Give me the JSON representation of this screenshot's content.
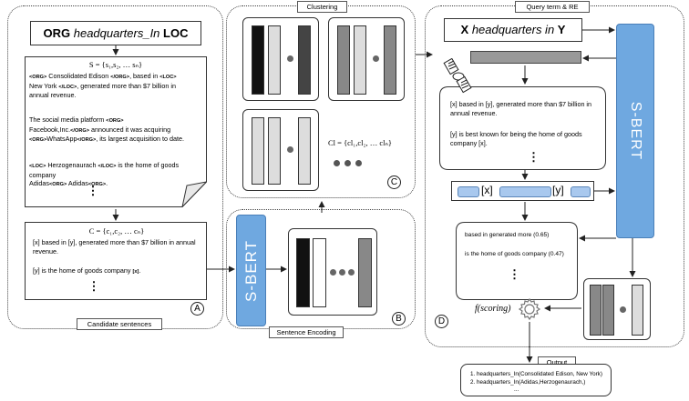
{
  "panel_a": {
    "pattern_org": "ORG",
    "pattern_rel": "headquarters_In",
    "pattern_loc": "LOC",
    "set_s": "S = {s₁,s₂, … sₙ}",
    "ex1_tag1": "<ORG>",
    "ex1_t1": " Consolidated Edison ",
    "ex1_tag2": "</ORG>",
    "ex1_t2": ", based in ",
    "ex1_tag3": "<LOC>",
    "ex1_t3": "New York ",
    "ex1_tag4": "</LOC>",
    "ex1_t4": ", generated more than $7 billion in annual revenue.",
    "ex2_t1": "The social media platform ",
    "ex2_tag1": "<ORG>",
    "ex2_t2": "Facebook,Inc.",
    "ex2_tag2": "</ORG>",
    "ex2_t3": " announced it was acquiring ",
    "ex2_tag3": "<ORG>",
    "ex2_t4": "WhatsApp",
    "ex2_tag4": "</ORG>",
    "ex2_t5": ", its largest acquisition to date.",
    "ex3_tag1": "<LOC>",
    "ex3_t1": " Herzogenaurach ",
    "ex3_tag2": "</LOC>",
    "ex3_t2": " is the home of goods company ",
    "ex3_tag3": "<ORG>",
    "ex3_t3": " Adidas",
    "ex3_tag4": "<ORG>",
    "ex3_t4": ".",
    "ellipsis": "⋮",
    "set_c": "C = {c₁,c₂, … cₙ}",
    "cand1": "[x] based in [y], generated more than $7 billion in annual revenue.",
    "cand2_t": "[y] is the home of goods company ",
    "cand2_x": "[x]",
    "cand2_end": ".",
    "label": "Candidate sentences",
    "letter": "A"
  },
  "panel_b": {
    "sbert": "S-BERT",
    "label": "Sentence Encoding",
    "letter": "B"
  },
  "panel_c": {
    "title": "Clustering",
    "set_cl": "Cl = {cl₁,cl₂, … clₙ}",
    "letter": "C"
  },
  "panel_d": {
    "title": "Query term & RE",
    "query_x": "X",
    "query_rel": "headquarters in",
    "query_y": "Y",
    "sbert": "S-BERT",
    "q1": "[x] based in [y], generated more than $7 billion in annual revenue.",
    "q2": "[y] is best known for being the home of goods company [x].",
    "ellipsis": "⋮",
    "tok_x": "[x]",
    "tok_y": "[y]",
    "score1": "based in  generated more (0.65)",
    "score2": "is the home of goods company (0.47)",
    "scoring": "f(scoring)",
    "letter": "D"
  },
  "output": {
    "title": "Output",
    "line1": "1. headquarters_In(Consolidated Edison, New York)",
    "line2": "2. headquarters_In(Adidas,Herzogenaurach,)",
    "more": "..."
  },
  "colors": {
    "sbert_blue": "#6fa8e0",
    "token_blue": "#a8c8ee"
  }
}
